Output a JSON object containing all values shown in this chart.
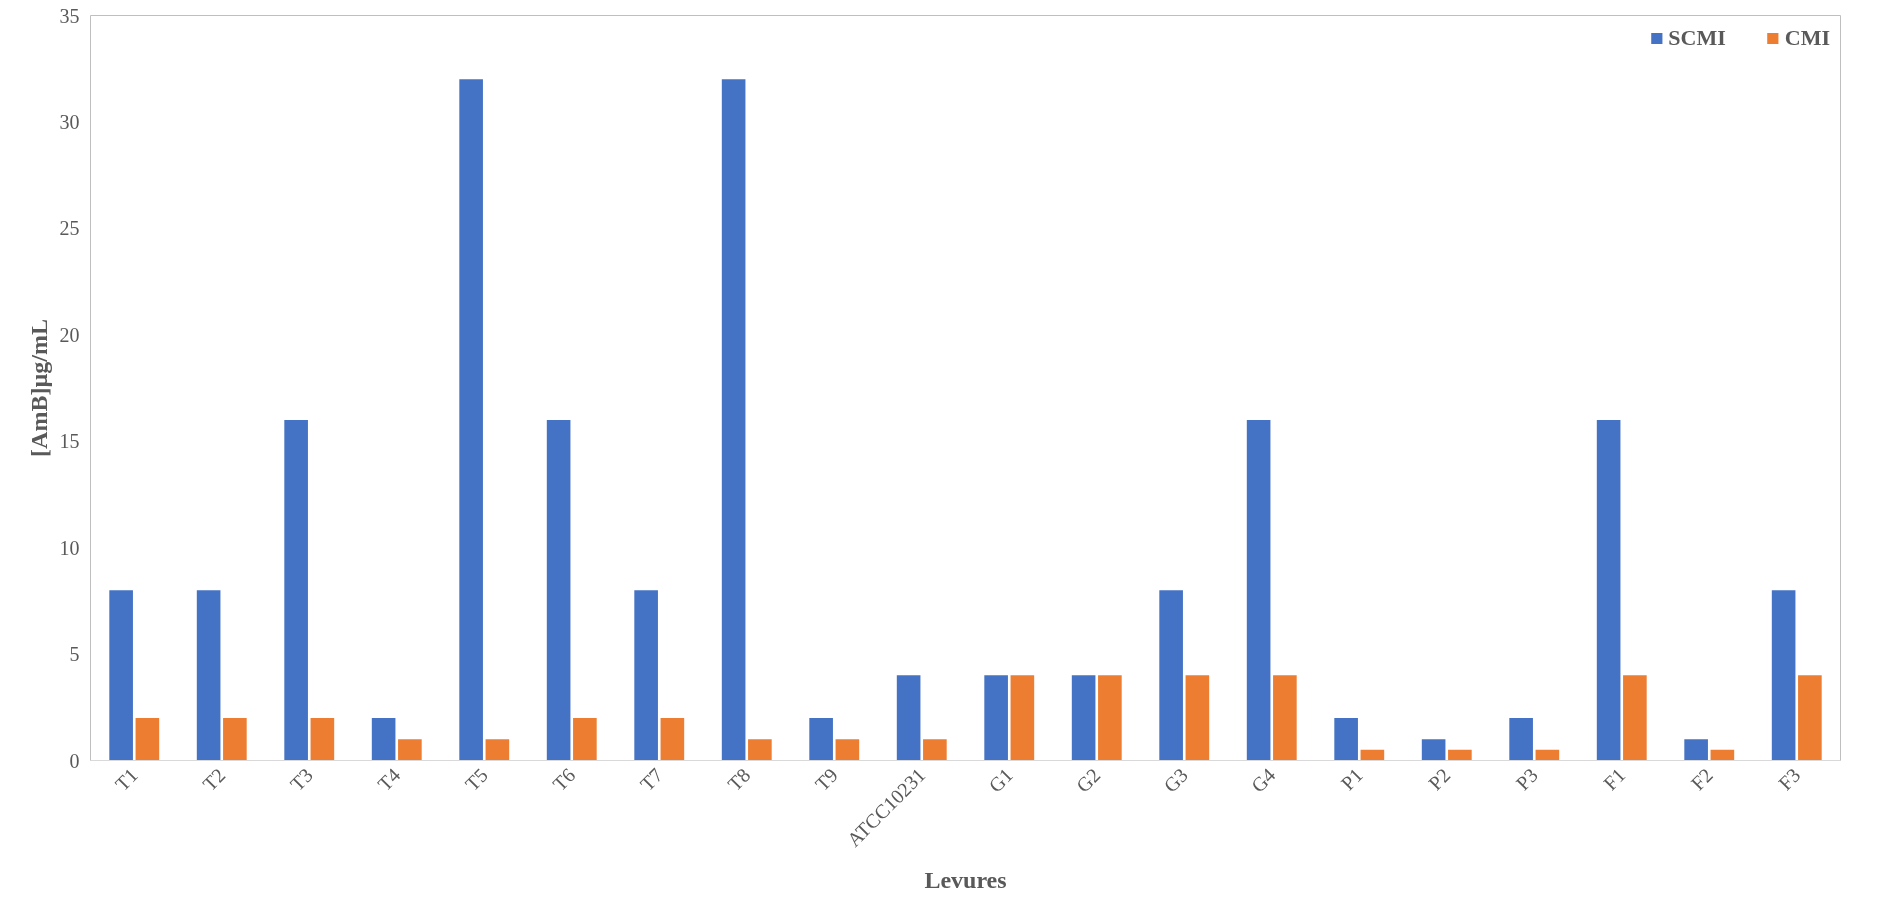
{
  "chart_data": {
    "type": "bar",
    "xlabel": "Levures",
    "ylabel": "[AmB]µg/mL",
    "categories": [
      "T1",
      "T2",
      "T3",
      "T4",
      "T5",
      "T6",
      "T7",
      "T8",
      "T9",
      "ATCC10231",
      "G1",
      "G2",
      "G3",
      "G4",
      "P1",
      "P2",
      "P3",
      "F1",
      "F2",
      "F3"
    ],
    "series": [
      {
        "name": "SCMI",
        "color": "#4472c4",
        "values": [
          8,
          8,
          16,
          2,
          32,
          16,
          8,
          32,
          2,
          4,
          4,
          4,
          8,
          16,
          2,
          1,
          2,
          16,
          1,
          8
        ]
      },
      {
        "name": "CMI",
        "color": "#ed7d31",
        "values": [
          2,
          2,
          2,
          1,
          1,
          2,
          2,
          1,
          1,
          1,
          4,
          4,
          4,
          4,
          0.5,
          0.5,
          0.5,
          4,
          0.5,
          4
        ]
      }
    ],
    "ylim": [
      0,
      35
    ],
    "yticks": [
      0,
      5,
      10,
      15,
      20,
      25,
      30,
      35
    ],
    "grid": false,
    "legend": "top right"
  }
}
